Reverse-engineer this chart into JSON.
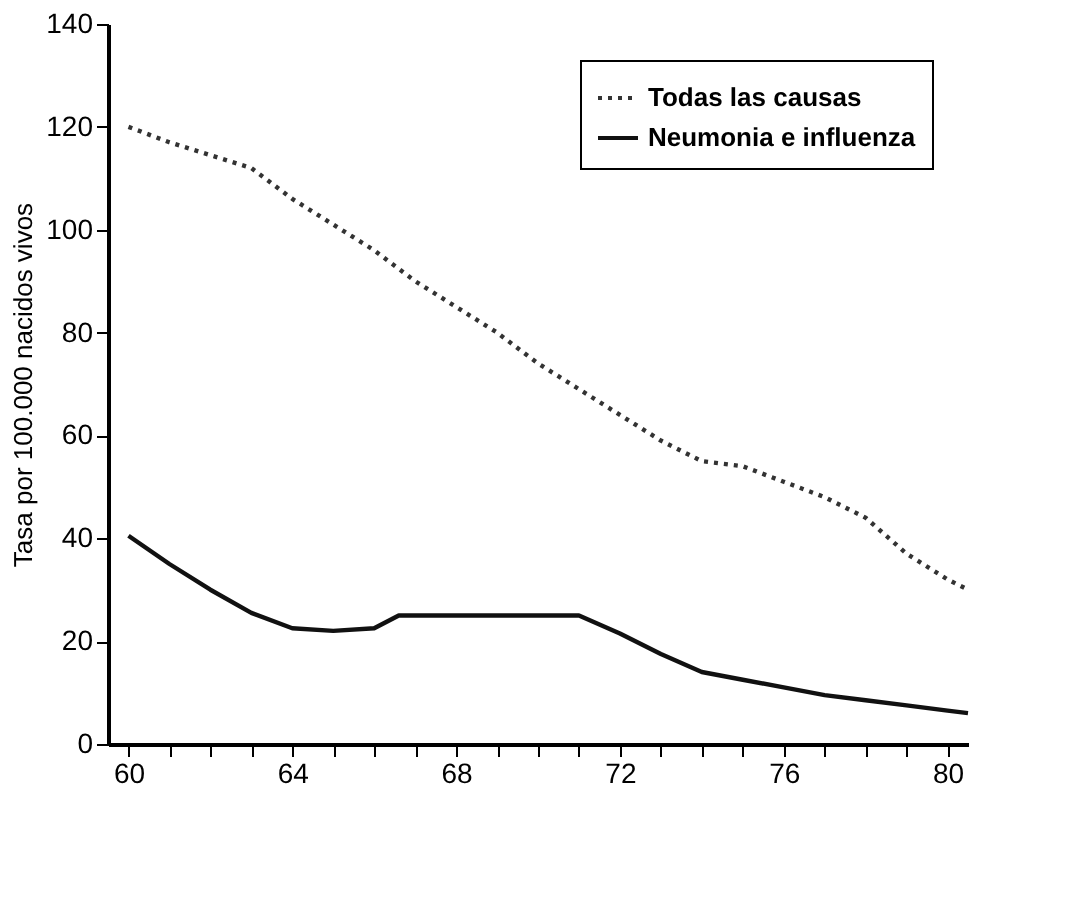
{
  "chart_data": {
    "type": "line",
    "ylabel": "Tasa por 100.000 nacidos vivos",
    "xlim": [
      59.5,
      80.5
    ],
    "ylim": [
      0,
      140
    ],
    "xticks": [
      60,
      {
        "value": 61,
        "label": null
      },
      {
        "value": 62,
        "label": null
      },
      {
        "value": 63,
        "label": null
      },
      64,
      {
        "value": 65,
        "label": null
      },
      {
        "value": 66,
        "label": null
      },
      {
        "value": 67,
        "label": null
      },
      68,
      {
        "value": 69,
        "label": null
      },
      {
        "value": 70,
        "label": null
      },
      {
        "value": 71,
        "label": null
      },
      72,
      {
        "value": 73,
        "label": null
      },
      {
        "value": 74,
        "label": null
      },
      {
        "value": 75,
        "label": null
      },
      76,
      {
        "value": 77,
        "label": null
      },
      {
        "value": 78,
        "label": null
      },
      {
        "value": 79,
        "label": null
      },
      80
    ],
    "yticks": [
      0,
      20,
      40,
      60,
      80,
      100,
      120,
      140
    ],
    "grid": false,
    "legend": "top right",
    "marker": "none",
    "series": [
      {
        "name": "Todas las causas",
        "color": "#333333",
        "line_style": "dotted",
        "x": [
          60,
          61,
          62,
          63,
          64,
          65,
          66,
          67,
          68,
          69,
          70,
          71,
          72,
          73,
          74,
          75,
          76,
          77,
          78,
          79,
          80,
          80.5
        ],
        "values": [
          120,
          117,
          114.5,
          112,
          106,
          101,
          96,
          90,
          85,
          80,
          74,
          69,
          64,
          59,
          55,
          54,
          51,
          48,
          44,
          37,
          32,
          30
        ]
      },
      {
        "name": "Neumonia e influenza",
        "color": "#111111",
        "line_style": "solid",
        "x": [
          60,
          61,
          62,
          63,
          64,
          65,
          66,
          66.6,
          71,
          72,
          73,
          74,
          75,
          76,
          77,
          78,
          79,
          80,
          80.5
        ],
        "values": [
          40.5,
          35,
          30,
          25.5,
          22.5,
          22,
          22.5,
          25,
          25,
          21.5,
          17.5,
          14,
          12.5,
          11,
          9.5,
          8.5,
          7.5,
          6.5,
          6
        ]
      }
    ]
  }
}
